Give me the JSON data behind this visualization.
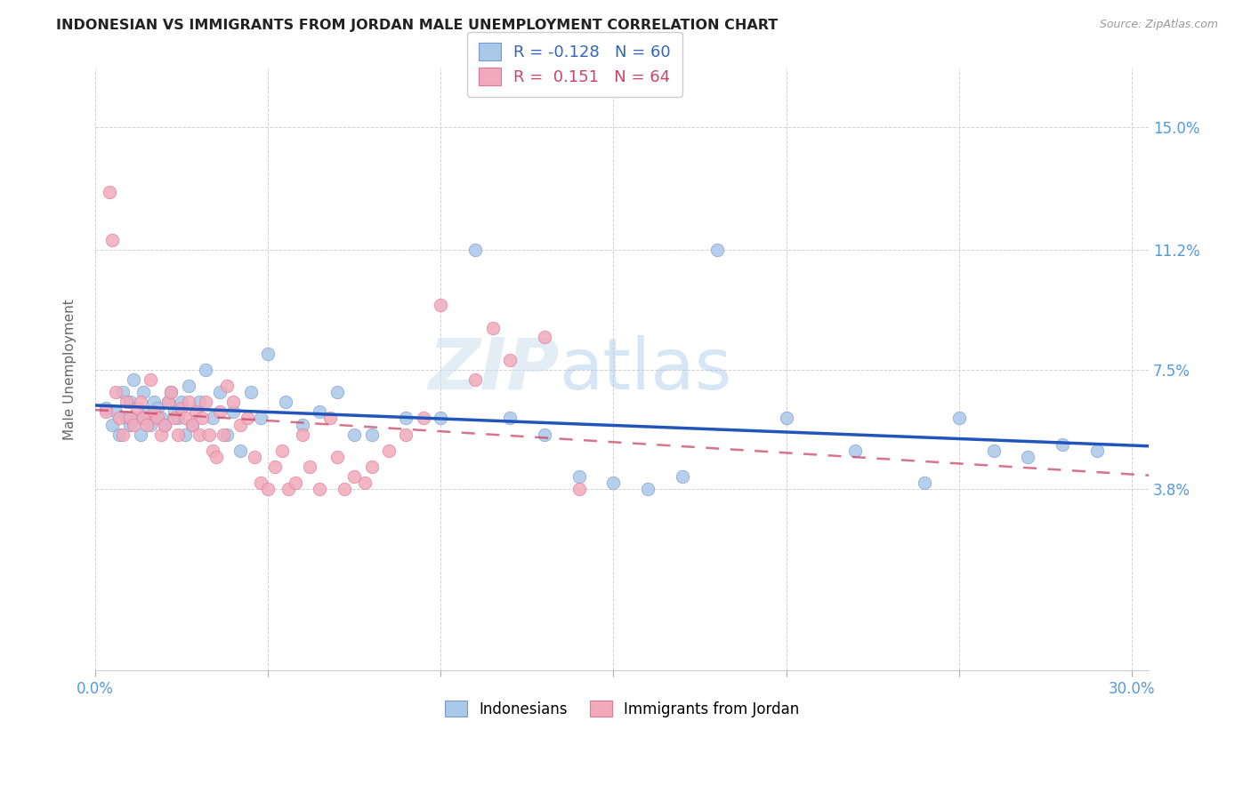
{
  "title": "INDONESIAN VS IMMIGRANTS FROM JORDAN MALE UNEMPLOYMENT CORRELATION CHART",
  "source": "Source: ZipAtlas.com",
  "ylabel": "Male Unemployment",
  "xlim": [
    0.0,
    0.305
  ],
  "ylim": [
    -0.018,
    0.168
  ],
  "xticks": [
    0.0,
    0.05,
    0.1,
    0.15,
    0.2,
    0.25,
    0.3
  ],
  "xticklabels": [
    "0.0%",
    "",
    "",
    "",
    "",
    "",
    "30.0%"
  ],
  "ytick_positions": [
    0.038,
    0.075,
    0.112,
    0.15
  ],
  "ytick_labels": [
    "3.8%",
    "7.5%",
    "11.2%",
    "15.0%"
  ],
  "legend1_label": "Indonesians",
  "legend2_label": "Immigrants from Jordan",
  "r1_str": "-0.128",
  "n1_str": "60",
  "r2_str": "0.151",
  "n2_str": "64",
  "color_blue": "#aac8e8",
  "color_pink": "#f2aabb",
  "color_blue_line": "#2255bb",
  "color_pink_line": "#cc4466",
  "color_axis": "#5599dd",
  "watermark_color": "#ccdff0",
  "watermark_text": "ZIPatlas",
  "blue_x": [
    0.003,
    0.005,
    0.006,
    0.007,
    0.008,
    0.009,
    0.01,
    0.01,
    0.011,
    0.012,
    0.013,
    0.014,
    0.015,
    0.016,
    0.017,
    0.018,
    0.019,
    0.02,
    0.021,
    0.022,
    0.023,
    0.024,
    0.025,
    0.026,
    0.027,
    0.028,
    0.03,
    0.032,
    0.034,
    0.036,
    0.038,
    0.04,
    0.042,
    0.045,
    0.048,
    0.05,
    0.055,
    0.06,
    0.065,
    0.07,
    0.075,
    0.08,
    0.09,
    0.1,
    0.11,
    0.12,
    0.13,
    0.14,
    0.15,
    0.16,
    0.17,
    0.18,
    0.2,
    0.22,
    0.24,
    0.25,
    0.26,
    0.27,
    0.28,
    0.29
  ],
  "blue_y": [
    0.063,
    0.058,
    0.062,
    0.055,
    0.068,
    0.06,
    0.065,
    0.058,
    0.072,
    0.06,
    0.055,
    0.068,
    0.062,
    0.058,
    0.065,
    0.063,
    0.06,
    0.058,
    0.065,
    0.068,
    0.062,
    0.06,
    0.065,
    0.055,
    0.07,
    0.058,
    0.065,
    0.075,
    0.06,
    0.068,
    0.055,
    0.062,
    0.05,
    0.068,
    0.06,
    0.08,
    0.065,
    0.058,
    0.062,
    0.068,
    0.055,
    0.055,
    0.06,
    0.06,
    0.112,
    0.06,
    0.055,
    0.042,
    0.04,
    0.038,
    0.042,
    0.112,
    0.06,
    0.05,
    0.04,
    0.06,
    0.05,
    0.048,
    0.052,
    0.05
  ],
  "pink_x": [
    0.003,
    0.004,
    0.005,
    0.006,
    0.007,
    0.008,
    0.009,
    0.01,
    0.011,
    0.012,
    0.013,
    0.014,
    0.015,
    0.016,
    0.017,
    0.018,
    0.019,
    0.02,
    0.021,
    0.022,
    0.023,
    0.024,
    0.025,
    0.026,
    0.027,
    0.028,
    0.029,
    0.03,
    0.031,
    0.032,
    0.033,
    0.034,
    0.035,
    0.036,
    0.037,
    0.038,
    0.04,
    0.042,
    0.044,
    0.046,
    0.048,
    0.05,
    0.052,
    0.054,
    0.056,
    0.058,
    0.06,
    0.062,
    0.065,
    0.068,
    0.07,
    0.072,
    0.075,
    0.078,
    0.08,
    0.085,
    0.09,
    0.095,
    0.1,
    0.11,
    0.115,
    0.12,
    0.13,
    0.14
  ],
  "pink_y": [
    0.062,
    0.13,
    0.115,
    0.068,
    0.06,
    0.055,
    0.065,
    0.06,
    0.058,
    0.063,
    0.065,
    0.06,
    0.058,
    0.072,
    0.062,
    0.06,
    0.055,
    0.058,
    0.065,
    0.068,
    0.06,
    0.055,
    0.063,
    0.06,
    0.065,
    0.058,
    0.062,
    0.055,
    0.06,
    0.065,
    0.055,
    0.05,
    0.048,
    0.062,
    0.055,
    0.07,
    0.065,
    0.058,
    0.06,
    0.048,
    0.04,
    0.038,
    0.045,
    0.05,
    0.038,
    0.04,
    0.055,
    0.045,
    0.038,
    0.06,
    0.048,
    0.038,
    0.042,
    0.04,
    0.045,
    0.05,
    0.055,
    0.06,
    0.095,
    0.072,
    0.088,
    0.078,
    0.085,
    0.038
  ]
}
